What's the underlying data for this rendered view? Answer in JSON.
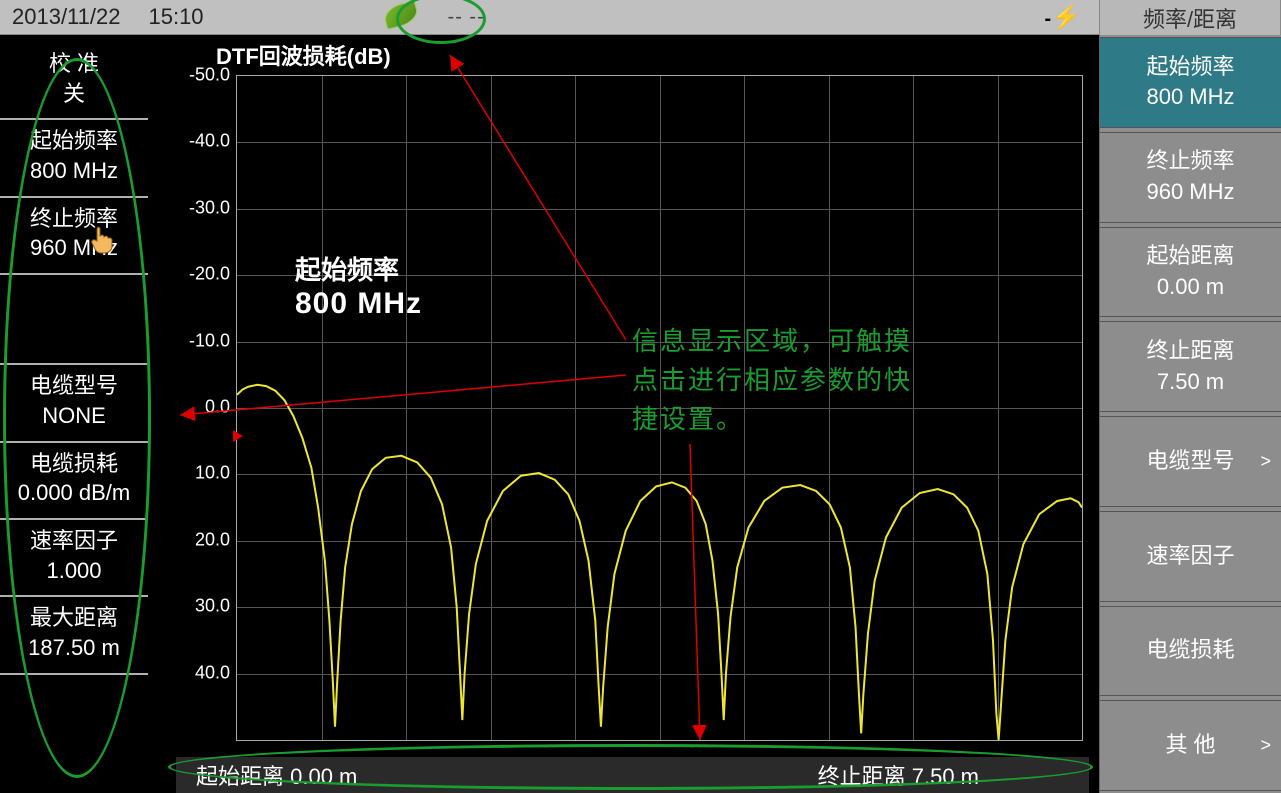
{
  "topbar": {
    "date": "2013/11/22",
    "time": "15:10",
    "dashes": "--  --",
    "plug": "-⏚:",
    "header_right": "频率/距离"
  },
  "left": {
    "items": [
      {
        "l1": "校 准",
        "l2": "关"
      },
      {
        "l1": "起始频率",
        "l2": "800 MHz"
      },
      {
        "l1": "终止频率",
        "l2": "960 MHz"
      },
      {
        "l1": "",
        "l2": ""
      },
      {
        "l1": "电缆型号",
        "l2": "NONE"
      },
      {
        "l1": "电缆损耗",
        "l2": "0.000 dB/m"
      },
      {
        "l1": "速率因子",
        "l2": "1.000"
      },
      {
        "l1": "最大距离",
        "l2": "187.50 m"
      }
    ]
  },
  "right": {
    "buttons": [
      {
        "l1": "起始频率",
        "l2": "800 MHz",
        "active": true
      },
      {
        "l1": "终止频率",
        "l2": "960 MHz"
      },
      {
        "l1": "起始距离",
        "l2": "0.00 m"
      },
      {
        "l1": "终止距离",
        "l2": "7.50 m"
      },
      {
        "l1": "电缆型号",
        "arrow": true
      },
      {
        "l1": "速率因子"
      },
      {
        "l1": "电缆损耗"
      },
      {
        "l1": "其 他",
        "arrow": true
      }
    ]
  },
  "chart": {
    "title": "DTF回波损耗(dB)",
    "ylim": [
      -50,
      50
    ],
    "ytick_step": 10,
    "yticks": [
      "-50.0",
      "-40.0",
      "-30.0",
      "-20.0",
      "-10.0",
      "0.0",
      "10.0",
      "20.0",
      "30.0",
      "40.0"
    ],
    "n_vgrid": 10,
    "xrange": [
      0,
      7.5
    ],
    "trace_color": "#efe632",
    "grid_color": "#555555",
    "background": "#000000",
    "series": [
      [
        0.0,
        -2.0
      ],
      [
        0.05,
        -2.8
      ],
      [
        0.1,
        -3.2
      ],
      [
        0.18,
        -3.5
      ],
      [
        0.26,
        -3.3
      ],
      [
        0.34,
        -2.6
      ],
      [
        0.42,
        -1.2
      ],
      [
        0.5,
        1.2
      ],
      [
        0.58,
        4.5
      ],
      [
        0.66,
        9.0
      ],
      [
        0.72,
        15.0
      ],
      [
        0.78,
        23.0
      ],
      [
        0.82,
        32.0
      ],
      [
        0.85,
        41.0
      ],
      [
        0.87,
        48.0
      ],
      [
        0.89,
        41.0
      ],
      [
        0.92,
        32.0
      ],
      [
        0.96,
        24.0
      ],
      [
        1.02,
        17.5
      ],
      [
        1.1,
        12.5
      ],
      [
        1.2,
        9.2
      ],
      [
        1.32,
        7.5
      ],
      [
        1.46,
        7.2
      ],
      [
        1.6,
        8.2
      ],
      [
        1.72,
        10.5
      ],
      [
        1.82,
        14.5
      ],
      [
        1.9,
        21.0
      ],
      [
        1.95,
        30.0
      ],
      [
        1.98,
        40.0
      ],
      [
        2.0,
        47.0
      ],
      [
        2.02,
        40.0
      ],
      [
        2.06,
        31.0
      ],
      [
        2.12,
        23.5
      ],
      [
        2.22,
        17.0
      ],
      [
        2.36,
        12.5
      ],
      [
        2.52,
        10.2
      ],
      [
        2.68,
        9.8
      ],
      [
        2.82,
        10.8
      ],
      [
        2.94,
        13.0
      ],
      [
        3.04,
        17.0
      ],
      [
        3.12,
        23.0
      ],
      [
        3.18,
        32.0
      ],
      [
        3.21,
        42.0
      ],
      [
        3.23,
        48.0
      ],
      [
        3.25,
        42.0
      ],
      [
        3.29,
        33.0
      ],
      [
        3.35,
        25.0
      ],
      [
        3.45,
        18.5
      ],
      [
        3.58,
        14.0
      ],
      [
        3.72,
        11.8
      ],
      [
        3.86,
        11.2
      ],
      [
        3.98,
        12.0
      ],
      [
        4.08,
        14.0
      ],
      [
        4.16,
        17.5
      ],
      [
        4.22,
        23.0
      ],
      [
        4.27,
        31.0
      ],
      [
        4.3,
        40.0
      ],
      [
        4.32,
        47.0
      ],
      [
        4.34,
        40.0
      ],
      [
        4.38,
        31.5
      ],
      [
        4.44,
        24.0
      ],
      [
        4.54,
        18.0
      ],
      [
        4.68,
        14.0
      ],
      [
        4.84,
        12.0
      ],
      [
        5.0,
        11.6
      ],
      [
        5.14,
        12.5
      ],
      [
        5.26,
        14.5
      ],
      [
        5.36,
        18.0
      ],
      [
        5.44,
        24.0
      ],
      [
        5.49,
        33.0
      ],
      [
        5.52,
        43.0
      ],
      [
        5.54,
        49.0
      ],
      [
        5.56,
        43.0
      ],
      [
        5.6,
        34.0
      ],
      [
        5.66,
        26.0
      ],
      [
        5.76,
        19.5
      ],
      [
        5.9,
        15.0
      ],
      [
        6.06,
        12.8
      ],
      [
        6.22,
        12.2
      ],
      [
        6.36,
        13.0
      ],
      [
        6.48,
        15.0
      ],
      [
        6.58,
        18.5
      ],
      [
        6.66,
        25.0
      ],
      [
        6.71,
        35.0
      ],
      [
        6.74,
        46.0
      ],
      [
        6.76,
        50.0
      ],
      [
        6.78,
        45.0
      ],
      [
        6.82,
        35.0
      ],
      [
        6.88,
        27.0
      ],
      [
        6.98,
        20.5
      ],
      [
        7.12,
        16.0
      ],
      [
        7.28,
        14.0
      ],
      [
        7.4,
        13.6
      ],
      [
        7.47,
        14.2
      ],
      [
        7.5,
        15.0
      ]
    ]
  },
  "bottom": {
    "start": "起始距离 0.00 m",
    "stop": "终止距离 7.50 m"
  },
  "popup": {
    "l1": "起始频率",
    "l2": "800 MHz"
  },
  "annotation": {
    "text_l1": "信息显示区域，可触摸",
    "text_l2": "点击进行相应参数的快",
    "text_l3": "捷设置。"
  }
}
